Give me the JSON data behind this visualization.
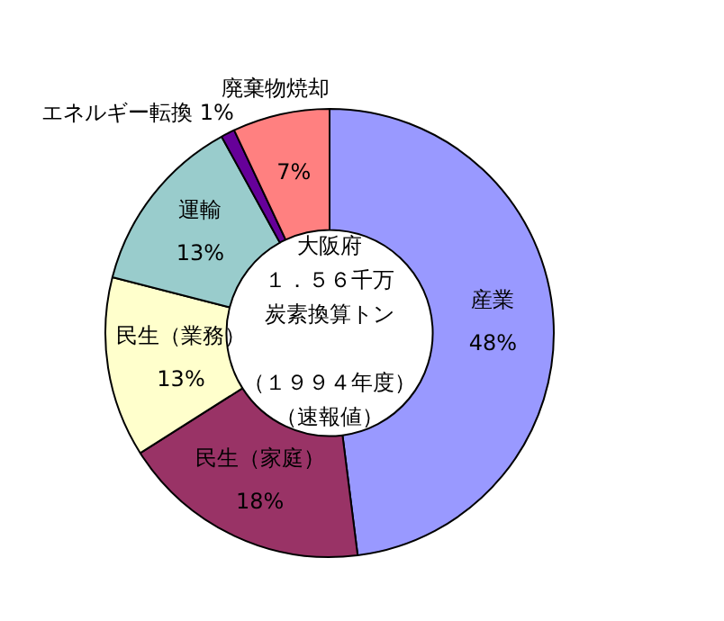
{
  "chart_data": {
    "type": "donut",
    "categories": [
      "産業",
      "民生（家庭）",
      "民生（業務）",
      "運輸",
      "エネルギー転換",
      "廃棄物焼却"
    ],
    "values": [
      48,
      18,
      13,
      13,
      1,
      7
    ],
    "value_labels": [
      "48%",
      "18%",
      "13%",
      "13%",
      "1%",
      "7%"
    ],
    "colors": [
      "#9999ff",
      "#993366",
      "#ffffcc",
      "#99cccc",
      "#660099",
      "#ff8080"
    ],
    "annotations": [
      "大阪府",
      "１．５６千万",
      "炭素換算トン",
      "（１９９４年度）",
      "（速報値）"
    ],
    "legend": false
  }
}
